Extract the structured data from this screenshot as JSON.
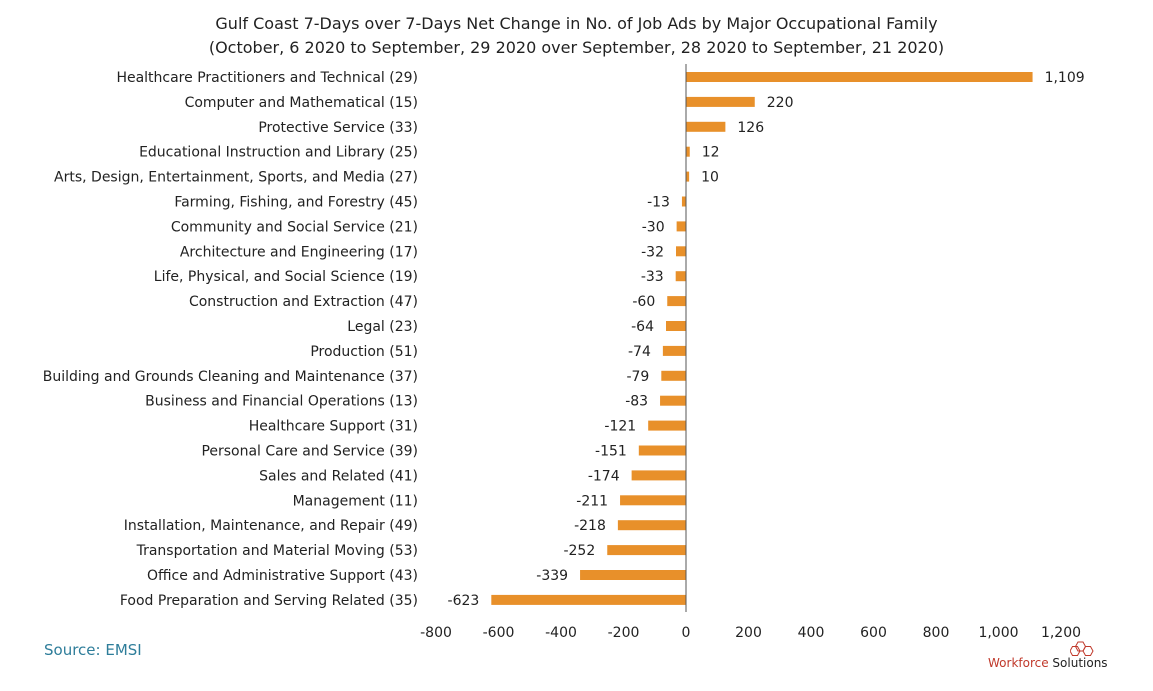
{
  "title_line1": "Gulf Coast 7-Days over 7-Days Net Change in No. of Job Ads by Major Occupational Family",
  "title_line2": "(October, 6 2020 to September, 29 2020 over September, 28 2020 to September, 21 2020)",
  "source": "Source: EMSI",
  "logo": {
    "part1": "Workforce",
    "part2": " Solutions"
  },
  "colors": {
    "bar": "#E8902A",
    "axis": "#555555"
  },
  "chart_data": {
    "type": "bar",
    "orientation": "horizontal",
    "categories": [
      "Healthcare Practitioners and Technical (29)",
      "Computer and Mathematical (15)",
      "Protective Service (33)",
      "Educational Instruction and Library (25)",
      "Arts, Design, Entertainment, Sports, and Media (27)",
      "Farming, Fishing, and Forestry (45)",
      "Community and Social Service (21)",
      "Architecture and Engineering (17)",
      "Life, Physical, and Social Science (19)",
      "Construction and Extraction (47)",
      "Legal (23)",
      "Production (51)",
      "Building and Grounds Cleaning and Maintenance (37)",
      "Business and Financial Operations (13)",
      "Healthcare Support (31)",
      "Personal Care and Service (39)",
      "Sales and Related (41)",
      "Management (11)",
      "Installation, Maintenance, and Repair (49)",
      "Transportation and Material Moving (53)",
      "Office and Administrative Support (43)",
      "Food Preparation and Serving Related (35)"
    ],
    "values": [
      1109,
      220,
      126,
      12,
      10,
      -13,
      -30,
      -32,
      -33,
      -60,
      -64,
      -74,
      -79,
      -83,
      -121,
      -151,
      -174,
      -211,
      -218,
      -252,
      -339,
      -623
    ],
    "value_labels": [
      "1,109",
      "220",
      "126",
      "12",
      "10",
      "-13",
      "-30",
      "-32",
      "-33",
      "-60",
      "-64",
      "-74",
      "-79",
      "-83",
      "-121",
      "-151",
      "-174",
      "-211",
      "-218",
      "-252",
      "-339",
      "-623"
    ],
    "xlim": [
      -800,
      1200
    ],
    "xticks": [
      -800,
      -600,
      -400,
      -200,
      0,
      200,
      400,
      600,
      800,
      1000,
      1200
    ],
    "xtick_labels": [
      "-800",
      "-600",
      "-400",
      "-200",
      "0",
      "200",
      "400",
      "600",
      "800",
      "1,000",
      "1,200"
    ],
    "grid": false
  }
}
